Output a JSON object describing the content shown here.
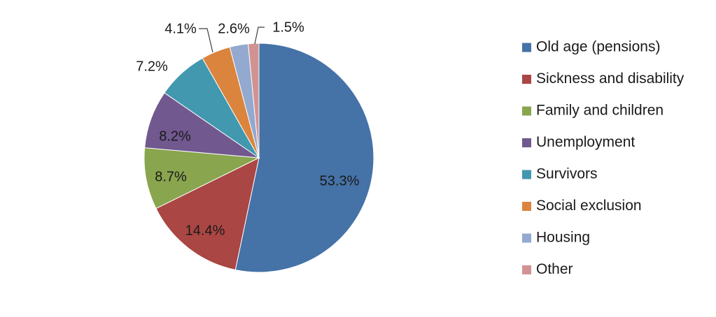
{
  "chart_data": {
    "type": "pie",
    "title": "",
    "start_angle_deg": 0,
    "direction": "clockwise",
    "legend_position": "right",
    "slices": [
      {
        "name": "Old age (pensions)",
        "value": 53.3,
        "label": "53.3%",
        "color": "#4572A7"
      },
      {
        "name": "Sickness and disability",
        "value": 14.4,
        "label": "14.4%",
        "color": "#AA4643"
      },
      {
        "name": "Family and children",
        "value": 8.7,
        "label": "8.7%",
        "color": "#89A54E"
      },
      {
        "name": "Unemployment",
        "value": 8.2,
        "label": "8.2%",
        "color": "#71588F"
      },
      {
        "name": "Survivors",
        "value": 7.2,
        "label": "7.2%",
        "color": "#4198AF"
      },
      {
        "name": "Social exclusion",
        "value": 4.1,
        "label": "4.1%",
        "color": "#DB843D"
      },
      {
        "name": "Housing",
        "value": 2.6,
        "label": "2.6%",
        "color": "#93A9CF"
      },
      {
        "name": "Other",
        "value": 1.5,
        "label": "1.5%",
        "color": "#D19392"
      }
    ]
  }
}
